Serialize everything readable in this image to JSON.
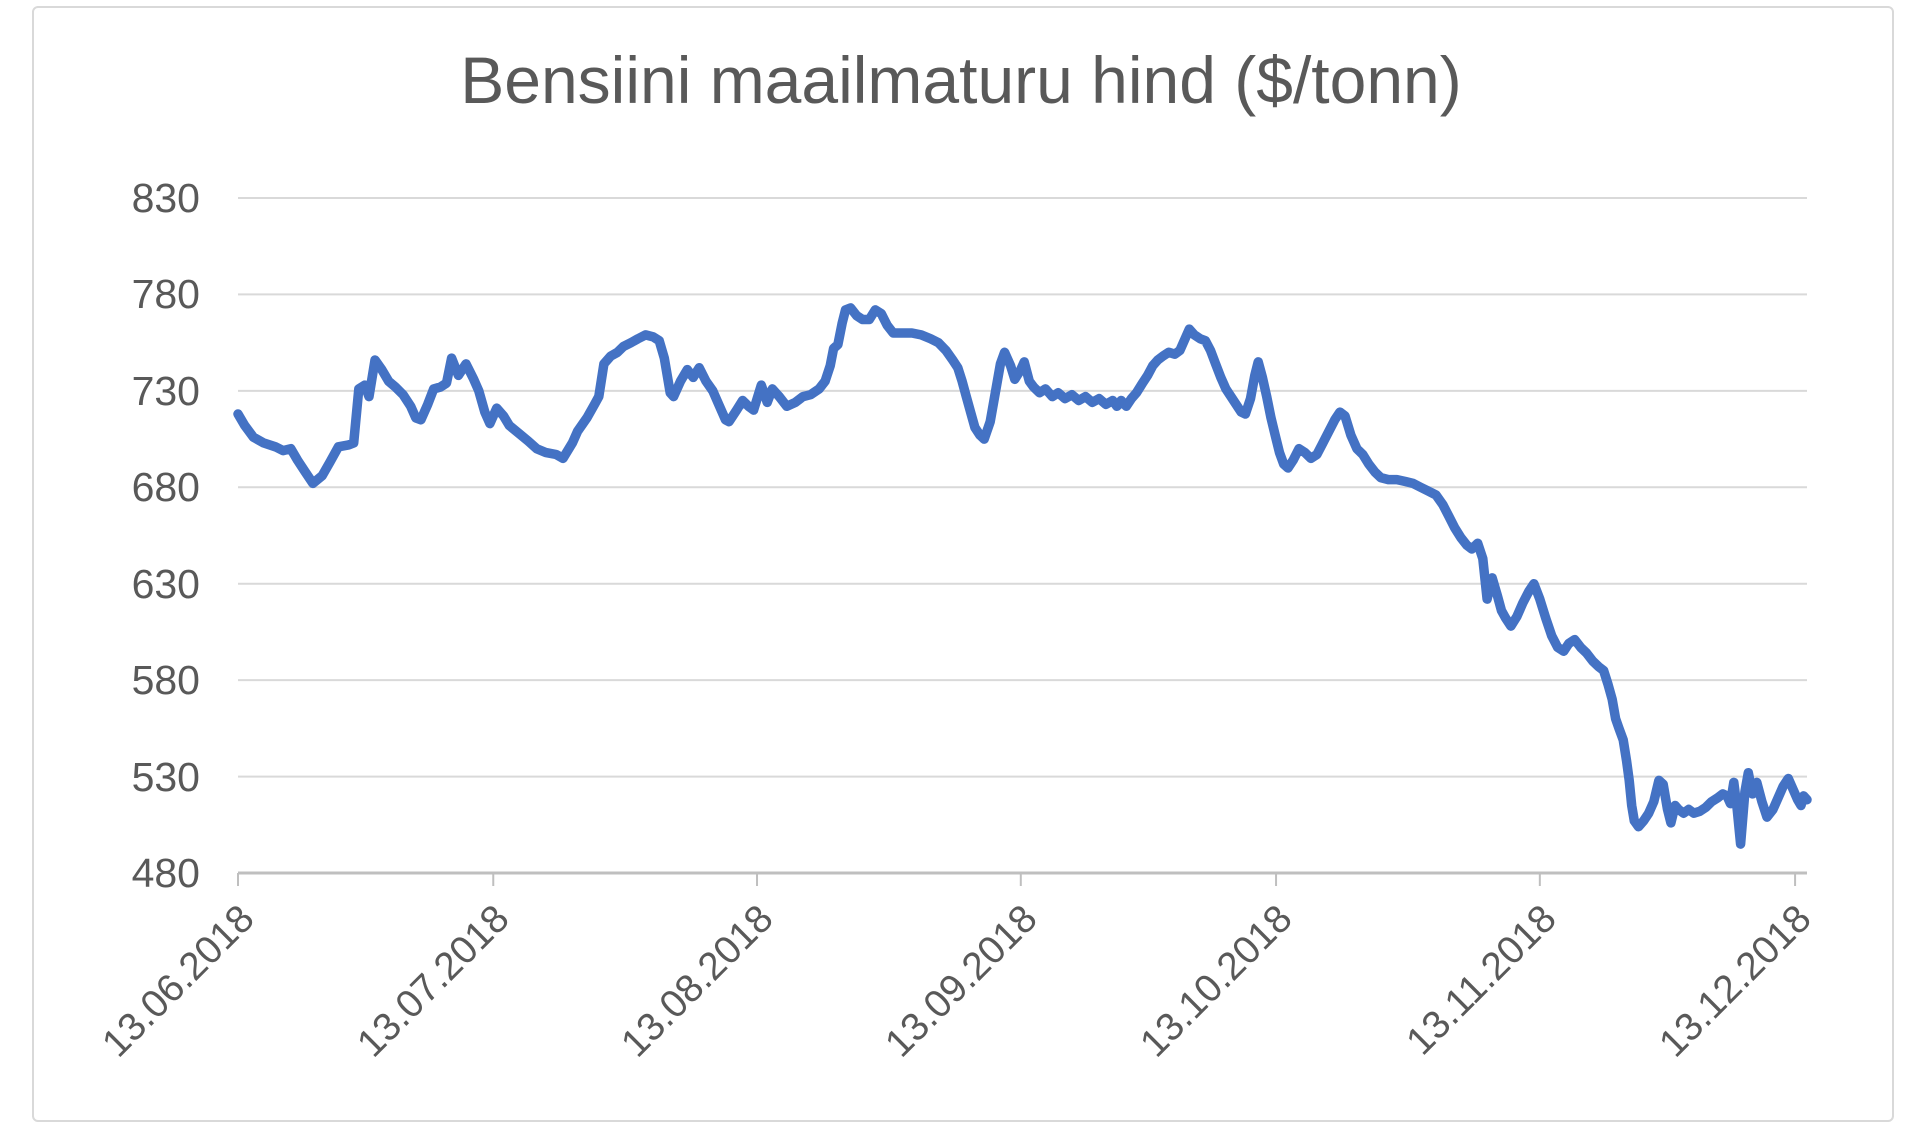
{
  "chart": {
    "title": "Bensiini maailmaturu hind ($/tonn)"
  },
  "colors": {
    "background": "#FFFFFF",
    "text": "#595959",
    "grid": "#D9D9D9",
    "axis": "#BFBFBF",
    "frame_border": "#D9D9D9",
    "line": "#4472C4"
  },
  "chart_data": {
    "type": "line",
    "title": "Bensiini maailmaturu hind ($/tonn)",
    "xlabel": "",
    "ylabel": "",
    "grid": true,
    "legend": false,
    "ylim": [
      480,
      830
    ],
    "y_ticks": [
      480,
      530,
      580,
      630,
      680,
      730,
      780,
      830
    ],
    "xlim": [
      0,
      184.4
    ],
    "x_unit": "days since 13.06.2018",
    "x_tick_positions": [
      0,
      30,
      61,
      92,
      122,
      153,
      183
    ],
    "x_tick_labels": [
      "13.06.2018",
      "13.07.2018",
      "13.08.2018",
      "13.09.2018",
      "13.10.2018",
      "13.11.2018",
      "13.12.2018"
    ],
    "line_color": "#4472C4",
    "line_width": 9.5,
    "series": [
      {
        "points": [
          [
            0,
            718
          ],
          [
            0.8,
            712
          ],
          [
            1.8,
            706
          ],
          [
            3,
            703
          ],
          [
            4.4,
            701
          ],
          [
            5.3,
            699
          ],
          [
            6.2,
            700
          ],
          [
            7,
            694
          ],
          [
            7.9,
            688
          ],
          [
            8.8,
            682
          ],
          [
            9.9,
            686
          ],
          [
            10.8,
            693
          ],
          [
            11.8,
            701
          ],
          [
            13,
            702
          ],
          [
            13.6,
            703
          ],
          [
            14.2,
            731
          ],
          [
            14.9,
            733
          ],
          [
            15.4,
            727
          ],
          [
            16.1,
            746
          ],
          [
            16.9,
            741
          ],
          [
            17.7,
            735
          ],
          [
            18.5,
            732
          ],
          [
            19.4,
            728
          ],
          [
            20.3,
            722
          ],
          [
            20.9,
            716
          ],
          [
            21.5,
            715
          ],
          [
            22.3,
            723
          ],
          [
            23,
            731
          ],
          [
            23.8,
            732
          ],
          [
            24.5,
            734
          ],
          [
            25.1,
            747
          ],
          [
            25.9,
            738
          ],
          [
            26.8,
            744
          ],
          [
            27.7,
            736
          ],
          [
            28.3,
            730
          ],
          [
            29,
            719
          ],
          [
            29.6,
            713
          ],
          [
            30.4,
            721
          ],
          [
            31.2,
            717
          ],
          [
            31.9,
            712
          ],
          [
            33,
            708
          ],
          [
            34.1,
            704
          ],
          [
            35.1,
            700
          ],
          [
            36.2,
            698
          ],
          [
            37.4,
            697
          ],
          [
            38.2,
            695
          ],
          [
            39.3,
            703
          ],
          [
            39.9,
            709
          ],
          [
            41,
            716
          ],
          [
            41.9,
            723
          ],
          [
            42.4,
            727
          ],
          [
            43,
            744
          ],
          [
            43.8,
            748
          ],
          [
            44.6,
            750
          ],
          [
            45.3,
            753
          ],
          [
            46.2,
            755
          ],
          [
            47,
            757
          ],
          [
            47.9,
            759
          ],
          [
            48.8,
            758
          ],
          [
            49.5,
            756
          ],
          [
            50.1,
            747
          ],
          [
            50.8,
            729
          ],
          [
            51.2,
            727
          ],
          [
            52,
            735
          ],
          [
            52.8,
            741
          ],
          [
            53.5,
            737
          ],
          [
            54.2,
            742
          ],
          [
            55,
            735
          ],
          [
            55.8,
            730
          ],
          [
            56.5,
            723
          ],
          [
            57.3,
            715
          ],
          [
            57.7,
            714
          ],
          [
            58.6,
            720
          ],
          [
            59.3,
            725
          ],
          [
            60,
            722
          ],
          [
            60.6,
            720
          ],
          [
            61.5,
            733
          ],
          [
            62.2,
            724
          ],
          [
            62.8,
            731
          ],
          [
            63.6,
            727
          ],
          [
            64.5,
            722
          ],
          [
            65.5,
            724
          ],
          [
            66.4,
            727
          ],
          [
            67.3,
            728
          ],
          [
            68.3,
            731
          ],
          [
            69,
            735
          ],
          [
            69.6,
            743
          ],
          [
            70,
            752
          ],
          [
            70.5,
            754
          ],
          [
            71,
            765
          ],
          [
            71.4,
            772
          ],
          [
            72,
            773
          ],
          [
            72.7,
            769
          ],
          [
            73.4,
            767
          ],
          [
            74.2,
            767
          ],
          [
            74.9,
            772
          ],
          [
            75.6,
            770
          ],
          [
            76.3,
            764
          ],
          [
            77,
            760
          ],
          [
            78,
            760
          ],
          [
            79.2,
            760
          ],
          [
            80.3,
            759
          ],
          [
            81.4,
            757
          ],
          [
            82.3,
            755
          ],
          [
            83.2,
            751
          ],
          [
            84,
            746
          ],
          [
            84.6,
            742
          ],
          [
            85.1,
            735
          ],
          [
            85.6,
            727
          ],
          [
            86.1,
            719
          ],
          [
            86.6,
            711
          ],
          [
            87.2,
            707
          ],
          [
            87.7,
            705
          ],
          [
            88.4,
            714
          ],
          [
            89,
            729
          ],
          [
            89.6,
            744
          ],
          [
            90.1,
            750
          ],
          [
            90.8,
            743
          ],
          [
            91.3,
            736
          ],
          [
            92,
            741
          ],
          [
            92.4,
            745
          ],
          [
            93,
            735
          ],
          [
            93.5,
            732
          ],
          [
            94.2,
            729
          ],
          [
            94.9,
            731
          ],
          [
            95.7,
            727
          ],
          [
            96.4,
            729
          ],
          [
            97.2,
            726
          ],
          [
            98,
            728
          ],
          [
            98.8,
            725
          ],
          [
            99.6,
            727
          ],
          [
            100.4,
            724
          ],
          [
            101.2,
            726
          ],
          [
            102,
            723
          ],
          [
            102.8,
            725
          ],
          [
            103.3,
            722
          ],
          [
            103.8,
            725
          ],
          [
            104.4,
            722
          ],
          [
            105,
            726
          ],
          [
            105.6,
            729
          ],
          [
            106.3,
            734
          ],
          [
            106.9,
            738
          ],
          [
            107.5,
            743
          ],
          [
            108.1,
            746
          ],
          [
            108.7,
            748
          ],
          [
            109.4,
            750
          ],
          [
            110.1,
            749
          ],
          [
            110.7,
            751
          ],
          [
            111.2,
            756
          ],
          [
            111.8,
            762
          ],
          [
            112.4,
            759
          ],
          [
            113.1,
            757
          ],
          [
            113.7,
            756
          ],
          [
            114.3,
            751
          ],
          [
            114.9,
            744
          ],
          [
            115.5,
            737
          ],
          [
            116.1,
            731
          ],
          [
            116.7,
            727
          ],
          [
            117.3,
            723
          ],
          [
            117.9,
            719
          ],
          [
            118.4,
            718
          ],
          [
            119,
            726
          ],
          [
            119.5,
            738
          ],
          [
            119.9,
            745
          ],
          [
            120.4,
            737
          ],
          [
            120.9,
            727
          ],
          [
            121.4,
            716
          ],
          [
            121.9,
            707
          ],
          [
            122.4,
            698
          ],
          [
            122.9,
            692
          ],
          [
            123.4,
            690
          ],
          [
            124,
            694
          ],
          [
            124.7,
            700
          ],
          [
            125.4,
            698
          ],
          [
            126.1,
            695
          ],
          [
            126.8,
            697
          ],
          [
            127.5,
            703
          ],
          [
            128.2,
            709
          ],
          [
            128.9,
            715
          ],
          [
            129.5,
            719
          ],
          [
            130.1,
            717
          ],
          [
            130.8,
            707
          ],
          [
            131.5,
            700
          ],
          [
            132.2,
            697
          ],
          [
            132.9,
            692
          ],
          [
            133.6,
            688
          ],
          [
            134.3,
            685
          ],
          [
            135.2,
            684
          ],
          [
            136.2,
            684
          ],
          [
            137.2,
            683
          ],
          [
            138.1,
            682
          ],
          [
            139,
            680
          ],
          [
            139.9,
            678
          ],
          [
            140.8,
            676
          ],
          [
            141.6,
            671
          ],
          [
            142.3,
            665
          ],
          [
            143,
            659
          ],
          [
            143.7,
            654
          ],
          [
            144.4,
            650
          ],
          [
            145,
            648
          ],
          [
            145.7,
            651
          ],
          [
            146.3,
            643
          ],
          [
            146.8,
            622
          ],
          [
            147.4,
            633
          ],
          [
            148,
            624
          ],
          [
            148.5,
            616
          ],
          [
            149,
            612
          ],
          [
            149.6,
            608
          ],
          [
            150.3,
            613
          ],
          [
            151,
            620
          ],
          [
            151.7,
            626
          ],
          [
            152.3,
            630
          ],
          [
            153,
            622
          ],
          [
            153.7,
            612
          ],
          [
            154.4,
            603
          ],
          [
            155.1,
            597
          ],
          [
            155.8,
            595
          ],
          [
            156.4,
            599
          ],
          [
            157.1,
            601
          ],
          [
            157.8,
            597
          ],
          [
            158.5,
            594
          ],
          [
            159.2,
            590
          ],
          [
            159.9,
            587
          ],
          [
            160.5,
            585
          ],
          [
            161,
            578
          ],
          [
            161.5,
            570
          ],
          [
            161.9,
            560
          ],
          [
            162.3,
            555
          ],
          [
            162.8,
            549
          ],
          [
            163.2,
            538
          ],
          [
            163.5,
            528
          ],
          [
            163.8,
            515
          ],
          [
            164.1,
            507
          ],
          [
            164.6,
            504
          ],
          [
            165.2,
            507
          ],
          [
            165.8,
            511
          ],
          [
            166.4,
            517
          ],
          [
            167,
            528
          ],
          [
            167.5,
            526
          ],
          [
            168,
            513
          ],
          [
            168.4,
            506
          ],
          [
            168.9,
            515
          ],
          [
            169.3,
            513
          ],
          [
            169.9,
            511
          ],
          [
            170.5,
            513
          ],
          [
            171.1,
            511
          ],
          [
            171.8,
            512
          ],
          [
            172.5,
            514
          ],
          [
            173.2,
            517
          ],
          [
            173.9,
            519
          ],
          [
            174.5,
            521
          ],
          [
            175,
            520
          ],
          [
            175.4,
            516
          ],
          [
            175.8,
            527
          ],
          [
            176.2,
            513
          ],
          [
            176.6,
            495
          ],
          [
            177.1,
            522
          ],
          [
            177.5,
            532
          ],
          [
            178,
            521
          ],
          [
            178.5,
            527
          ],
          [
            179.1,
            517
          ],
          [
            179.7,
            509
          ],
          [
            180.4,
            513
          ],
          [
            181,
            519
          ],
          [
            181.6,
            525
          ],
          [
            182.2,
            529
          ],
          [
            182.8,
            523
          ],
          [
            183.3,
            518
          ],
          [
            183.7,
            515
          ],
          [
            184,
            520
          ],
          [
            184.4,
            518
          ]
        ]
      }
    ]
  }
}
